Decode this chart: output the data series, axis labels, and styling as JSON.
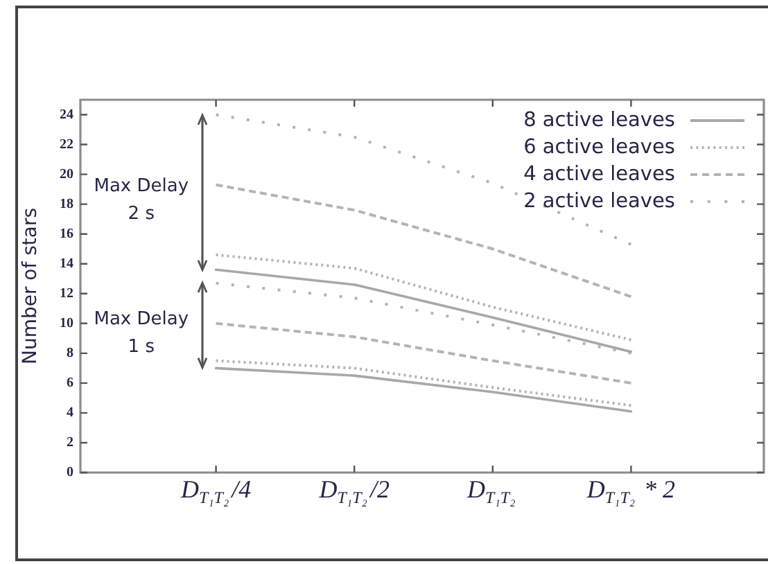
{
  "chart_data": {
    "type": "line",
    "ylabel": "Number of stars",
    "categories": [
      "D$_{T₁T₂}$/4",
      "D$_{T₁T₂}$/2",
      "D$_{T₁T₂}$",
      "D$_{T₁T₂}$ * 2"
    ],
    "series": [
      {
        "name": "8 active leaves",
        "color": "#a8a8a8",
        "line_style": "solid",
        "values": [
          13.6,
          12.6,
          10.4,
          8.1
        ]
      },
      {
        "name": "6 active leaves",
        "color": "#b4b4b4",
        "line_style": "dotted",
        "values": [
          14.6,
          13.7,
          11.1,
          8.9
        ]
      },
      {
        "name": "4 active leaves",
        "color": "#b4b4b4",
        "line_style": "dashed",
        "values": [
          19.3,
          17.6,
          15.0,
          11.8
        ]
      },
      {
        "name": "2 active leaves",
        "color": "#b4b4b4",
        "line_style": "dotted",
        "values": [
          24.0,
          22.5,
          19.4,
          15.3
        ]
      },
      {
        "color": "#a8a8a8",
        "line_style": "solid",
        "values": [
          7.0,
          6.5,
          5.4,
          4.1
        ]
      },
      {
        "color": "#b4b4b4",
        "line_style": "dotted",
        "values": [
          7.5,
          7.0,
          5.7,
          4.5
        ]
      },
      {
        "color": "#b4b4b4",
        "line_style": "dashed",
        "values": [
          10.0,
          9.1,
          7.5,
          6.0
        ]
      },
      {
        "color": "#b4b4b4",
        "line_style": "dotted",
        "values": [
          12.7,
          11.7,
          9.9,
          8.0
        ]
      }
    ],
    "ylim": [
      0,
      25
    ],
    "yticks": [
      0,
      2,
      4,
      6,
      8,
      10,
      12,
      14,
      16,
      18,
      20,
      22,
      24
    ],
    "legend": "top right",
    "marker": "none",
    "annotations": [
      "Max Delay 2 s",
      "Max Delay 1 s"
    ]
  }
}
